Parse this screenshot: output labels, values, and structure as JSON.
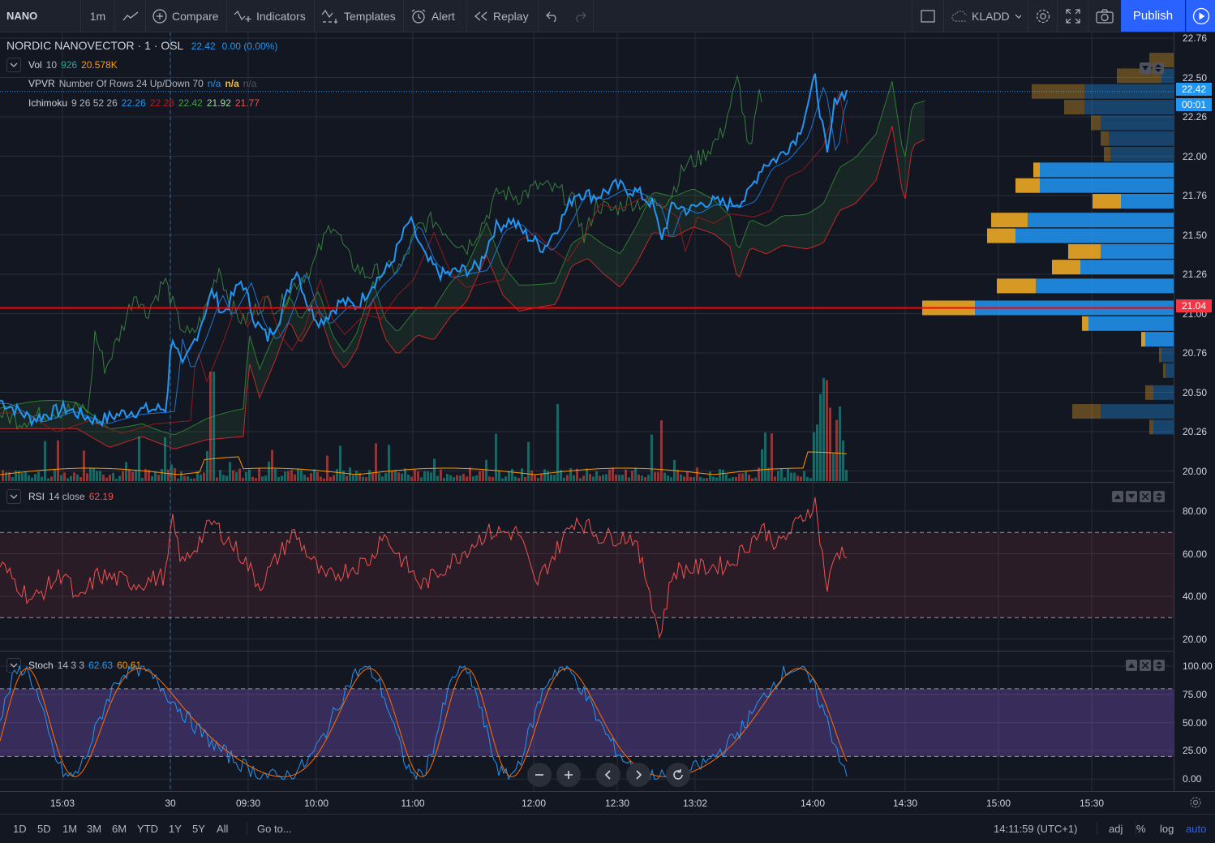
{
  "toolbar": {
    "symbol": "NANO",
    "interval": "1m",
    "compare": "Compare",
    "indicators": "Indicators",
    "templates": "Templates",
    "alert": "Alert",
    "replay": "Replay",
    "layout_name": "KLADD",
    "publish": "Publish"
  },
  "legend": {
    "title": "NORDIC NANOVECTOR · 1 · OSL",
    "price": "22.42",
    "change": "0.00 (0.00%)",
    "vol": {
      "name": "Vol",
      "param": "10",
      "v1": "926",
      "v2": "20.578K"
    },
    "vpvr": {
      "name": "VPVR",
      "params": "Number Of Rows 24 Up/Down 70",
      "v1": "n/a",
      "v2": "n/a",
      "v3": "n/a"
    },
    "ichimoku": {
      "name": "Ichimoku",
      "params": "9 26 52 26",
      "v1": "22.26",
      "v2": "22.28",
      "v3": "22.42",
      "v4": "21.92",
      "v5": "21.77"
    },
    "rsi": {
      "name": "RSI",
      "params": "14 close",
      "value": "62.19"
    },
    "stoch": {
      "name": "Stoch",
      "params": "14 3 3",
      "k": "62.63",
      "d": "60.61"
    }
  },
  "price_axis": [
    "22.76",
    "22.50",
    "22.26",
    "22.00",
    "21.76",
    "21.50",
    "21.26",
    "21.00",
    "20.76",
    "20.50",
    "20.26",
    "20.00"
  ],
  "price_tags": {
    "last": "22.42",
    "countdown": "00:01",
    "level": "21.04"
  },
  "rsi_axis": [
    "80.00",
    "60.00",
    "40.00",
    "20.00"
  ],
  "stoch_axis": [
    "100.00",
    "75.00",
    "50.00",
    "25.00",
    "0.00"
  ],
  "time_axis": [
    "15:03",
    "30",
    "09:30",
    "10:00",
    "11:00",
    "12:00",
    "12:30",
    "13:02",
    "14:00",
    "14:30",
    "15:00",
    "15:30"
  ],
  "bottom": {
    "ranges": [
      "1D",
      "5D",
      "1M",
      "3M",
      "6M",
      "YTD",
      "1Y",
      "5Y",
      "All"
    ],
    "goto": "Go to...",
    "clock": "14:11:59 (UTC+1)",
    "adj": "adj",
    "pct": "%",
    "log": "log",
    "auto": "auto"
  },
  "colors": {
    "accent": "#2962ff",
    "up": "#26a69a",
    "down": "#ef5350",
    "price_line": "#2196f3",
    "level_line": "#ff0000"
  },
  "chart_data": {
    "type": "line",
    "title": "NORDIC NANOVECTOR · 1 · OSL",
    "ylim": [
      20.0,
      22.76
    ],
    "x": [
      "15:03",
      "30",
      "09:30",
      "10:00",
      "11:00",
      "12:00",
      "12:30",
      "13:02",
      "14:00"
    ],
    "series": [
      {
        "name": "",
        "values": [
          20.45,
          20.3,
          21.2,
          21.05,
          21.45,
          21.3,
          21.8,
          21.7,
          22.42
        ]
      }
    ],
    "rsi_value": 62.19,
    "stoch_k": 62.63,
    "stoch_d": 60.61,
    "horizontal_level": 21.04
  }
}
